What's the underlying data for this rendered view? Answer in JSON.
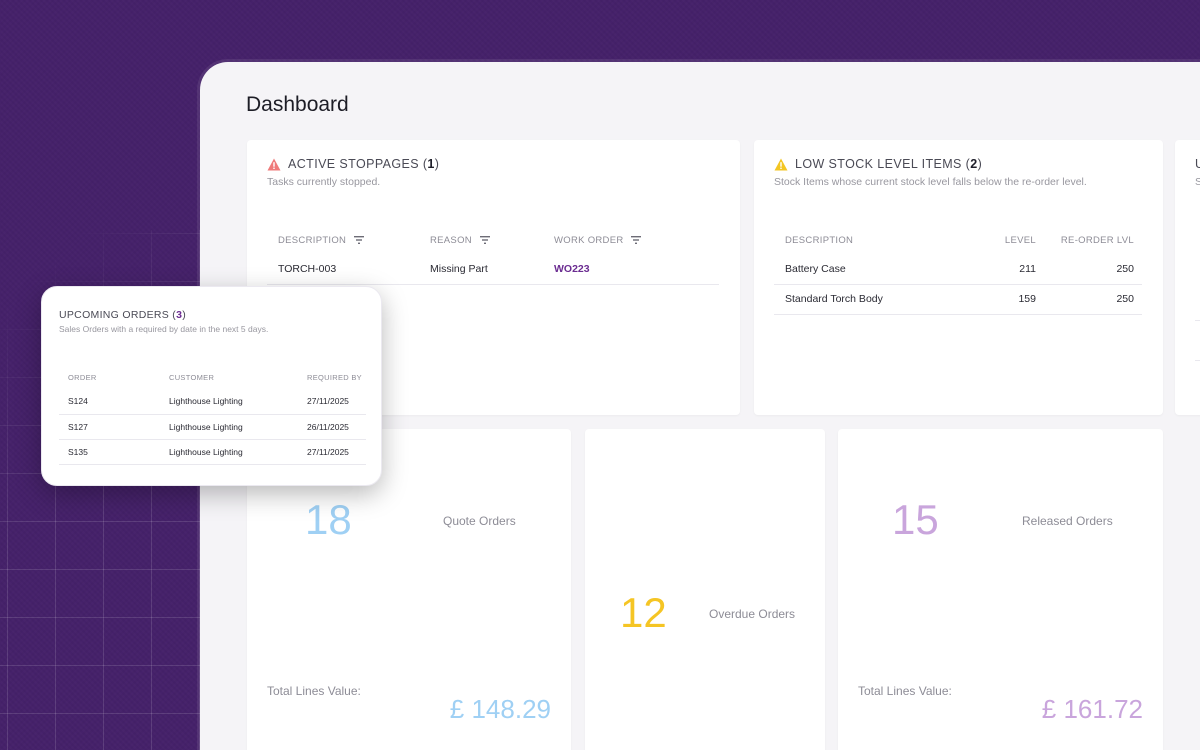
{
  "page": {
    "title": "Dashboard"
  },
  "colors": {
    "background": "#45216a",
    "accent": "#6b2c91",
    "quote": "#9fd0f4",
    "overdue": "#f5c524",
    "released": "#c9a5dc",
    "stoppage_icon": "#ef7a7a",
    "low_stock_icon": "#f3c623"
  },
  "active_stoppages": {
    "title": "ACTIVE STOPPAGES",
    "count": "1",
    "icon": "warning-triangle-red",
    "subtitle": "Tasks currently stopped.",
    "columns": [
      "DESCRIPTION",
      "REASON",
      "WORK ORDER"
    ],
    "rows": [
      {
        "description": "TORCH-003",
        "reason": "Missing Part",
        "work_order": "WO223"
      }
    ]
  },
  "low_stock": {
    "title": "LOW STOCK LEVEL ITEMS",
    "count": "2",
    "icon": "warning-triangle-yellow",
    "subtitle": "Stock Items whose current stock level falls below the re-order level.",
    "columns": [
      "DESCRIPTION",
      "LEVEL",
      "RE-ORDER LVL"
    ],
    "rows": [
      {
        "description": "Battery Case",
        "level": "211",
        "reorder": "250"
      },
      {
        "description": "Standard Torch Body",
        "level": "159",
        "reorder": "250"
      }
    ]
  },
  "partial_card": {
    "title_initial": "U",
    "subtitle_initial": "S"
  },
  "upcoming_orders": {
    "title": "UPCOMING ORDERS",
    "count": "3",
    "subtitle": "Sales Orders with a required by date in the next 5 days.",
    "columns": [
      "ORDER",
      "CUSTOMER",
      "REQUIRED BY"
    ],
    "rows": [
      {
        "order": "S124",
        "customer": "Lighthouse Lighting",
        "required_by": "27/11/2025"
      },
      {
        "order": "S127",
        "customer": "Lighthouse Lighting",
        "required_by": "26/11/2025"
      },
      {
        "order": "S135",
        "customer": "Lighthouse Lighting",
        "required_by": "27/11/2025"
      }
    ]
  },
  "stats": {
    "quote": {
      "value": "18",
      "label": "Quote Orders",
      "total_label": "Total Lines Value:",
      "total": "£ 148.29"
    },
    "overdue": {
      "value": "12",
      "label": "Overdue Orders"
    },
    "released": {
      "value": "15",
      "label": "Released Orders",
      "total_label": "Total Lines Value:",
      "total": "£ 161.72"
    }
  }
}
